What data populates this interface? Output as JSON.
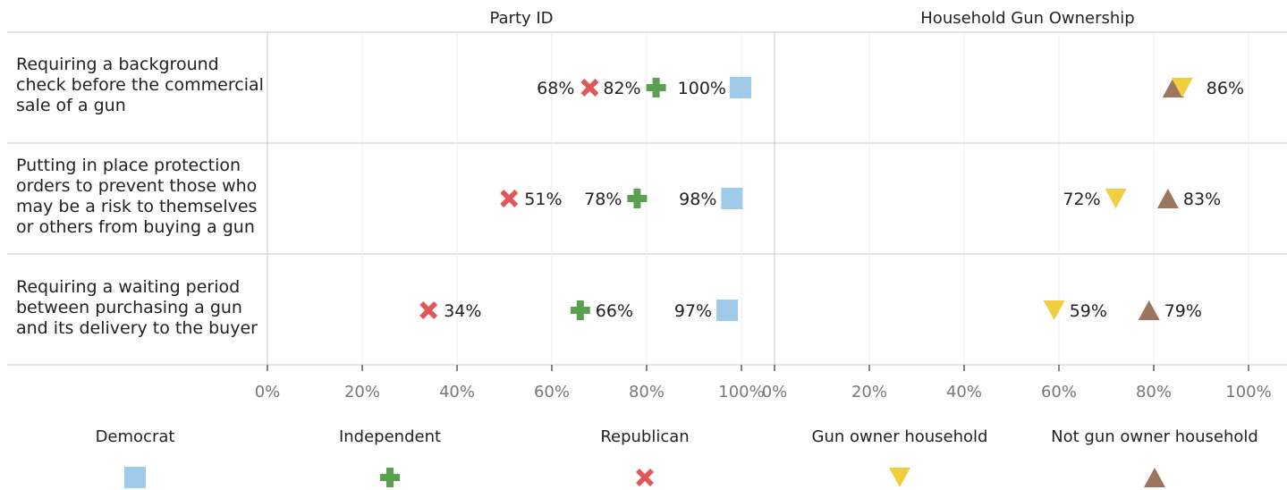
{
  "chart_data": {
    "type": "scatter",
    "panels": [
      {
        "title": "Party ID",
        "xlim": [
          0,
          100
        ],
        "ticks": [
          "0%",
          "20%",
          "40%",
          "60%",
          "80%",
          "100%"
        ],
        "series": [
          {
            "name": "Democrat",
            "marker": "square",
            "color": "#a0cbe8",
            "values": [
              100,
              98,
              97
            ]
          },
          {
            "name": "Independent",
            "marker": "plus",
            "color": "#59a14f",
            "values": [
              82,
              78,
              66
            ]
          },
          {
            "name": "Republican",
            "marker": "x",
            "color": "#e15759",
            "values": [
              68,
              51,
              34
            ]
          }
        ]
      },
      {
        "title": "Household Gun Ownership",
        "xlim": [
          0,
          100
        ],
        "ticks": [
          "0%",
          "20%",
          "40%",
          "60%",
          "80%",
          "100%"
        ],
        "series": [
          {
            "name": "Gun owner household",
            "marker": "triangle-down",
            "color": "#f1ce3f",
            "values": [
              86,
              72,
              59
            ]
          },
          {
            "name": "Not gun owner household",
            "marker": "triangle-up",
            "color": "#9c755f",
            "values": [
              86,
              83,
              79
            ]
          }
        ]
      }
    ],
    "rows": [
      "Requiring a background check before the commercial sale of a gun",
      "Putting in place protection orders to prevent those who may be a risk to themselves or others from buying a gun",
      "Requiring a waiting period between purchasing a gun and its delivery to the buyer"
    ],
    "point_labels": [
      [
        "68%",
        "82%",
        "100%",
        "",
        "86%"
      ],
      [
        "51%",
        "78%",
        "98%",
        "72%",
        "83%"
      ],
      [
        "34%",
        "66%",
        "97%",
        "59%",
        "79%"
      ]
    ],
    "legend_placement": "bottom",
    "legend": [
      "Democrat",
      "Independent",
      "Republican",
      "Gun owner household",
      "Not gun owner household"
    ]
  },
  "row_lines": {
    "row1": [
      "Requiring a background",
      "check before the commercial",
      "sale of a gun"
    ],
    "row2": [
      "Putting in place protection",
      "orders to prevent those who",
      "may be a risk to themselves",
      "or others from buying a gun"
    ],
    "row3": [
      "Requiring a waiting period",
      "between purchasing a gun",
      "and its delivery to the buyer"
    ]
  }
}
